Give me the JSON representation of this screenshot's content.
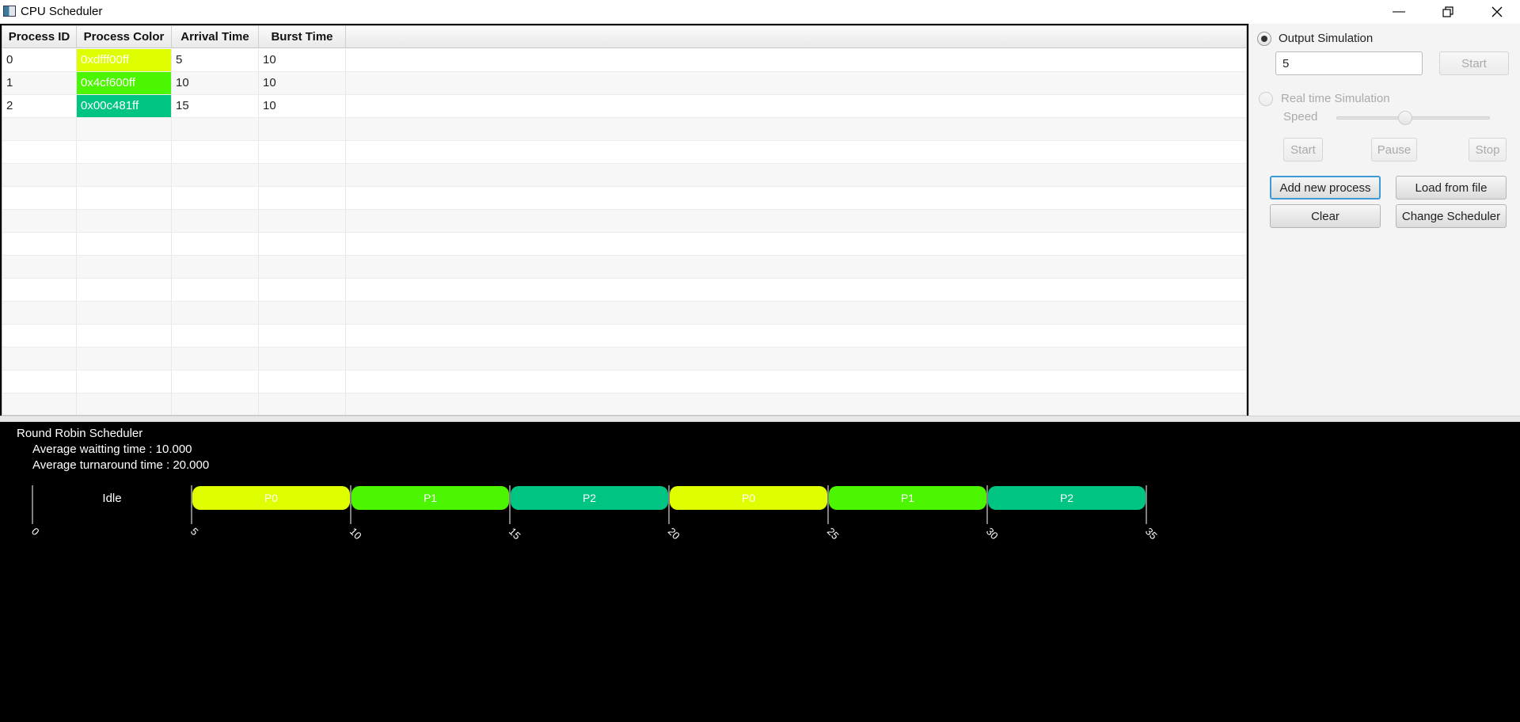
{
  "window": {
    "title": "CPU Scheduler",
    "minimize_icon": "minimize-icon",
    "maximize_icon": "restore-icon",
    "close_icon": "close-icon"
  },
  "table": {
    "headers": [
      "Process ID",
      "Process Color",
      "Arrival Time",
      "Burst Time"
    ],
    "rows": [
      {
        "id": "0",
        "color_label": "0xdfff00ff",
        "color_hex": "#dfff00",
        "arrival": "5",
        "burst": "10"
      },
      {
        "id": "1",
        "color_label": "0x4cf600ff",
        "color_hex": "#4cf600",
        "arrival": "10",
        "burst": "10"
      },
      {
        "id": "2",
        "color_label": "0x00c481ff",
        "color_hex": "#00c481",
        "arrival": "15",
        "burst": "10"
      }
    ]
  },
  "panel": {
    "output_sim_label": "Output Simulation",
    "output_sim_selected": true,
    "quantum_value": "5",
    "start_label": "Start",
    "realtime_label": "Real time Simulation",
    "speed_label": "Speed",
    "speed_level": 0.45,
    "rt_start_label": "Start",
    "pause_label": "Pause",
    "stop_label": "Stop",
    "add_process_label": "Add new process",
    "load_file_label": "Load from file",
    "clear_label": "Clear",
    "change_scheduler_label": "Change Scheduler"
  },
  "output": {
    "scheduler_name": "Round Robin Scheduler",
    "avg_waiting": "Average waitting time : 10.000",
    "avg_turnaround": "Average turnaround time : 20.000"
  },
  "chart_data": {
    "type": "gantt",
    "segments": [
      {
        "label": "Idle",
        "start": 0,
        "end": 5,
        "color": null
      },
      {
        "label": "P0",
        "start": 5,
        "end": 10,
        "color": "#dfff00"
      },
      {
        "label": "P1",
        "start": 10,
        "end": 15,
        "color": "#4cf600"
      },
      {
        "label": "P2",
        "start": 15,
        "end": 20,
        "color": "#00c481"
      },
      {
        "label": "P0",
        "start": 20,
        "end": 25,
        "color": "#dfff00"
      },
      {
        "label": "P1",
        "start": 25,
        "end": 30,
        "color": "#4cf600"
      },
      {
        "label": "P2",
        "start": 30,
        "end": 35,
        "color": "#00c481"
      }
    ],
    "ticks": [
      0,
      5,
      10,
      15,
      20,
      25,
      30,
      35
    ]
  }
}
